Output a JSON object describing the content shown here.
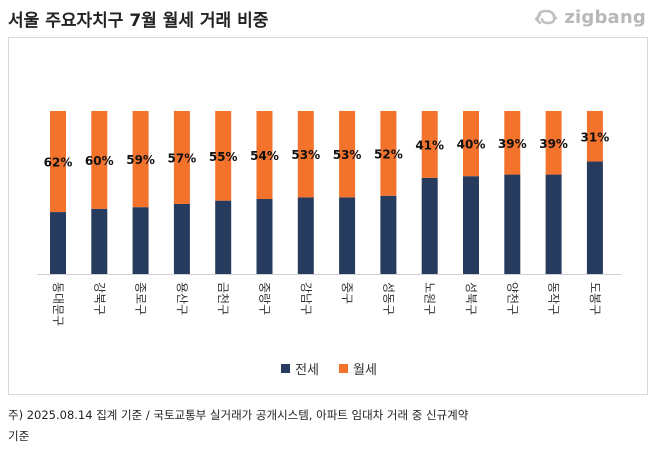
{
  "header": {
    "title": "서울 주요자치구 7월 월세 거래 비중",
    "logo_text": "zigbang",
    "logo_icon": "zigbang-logo-icon"
  },
  "colors": {
    "jeonse": "#263b5e",
    "wolse": "#f3722c",
    "frame": "#d9d9d9"
  },
  "chart_data": {
    "type": "bar",
    "stacked": true,
    "percent_stacked": true,
    "title": "서울 주요자치구 7월 월세 거래 비중",
    "categories": [
      "동대문구",
      "강북구",
      "종로구",
      "용산구",
      "금천구",
      "중랑구",
      "강남구",
      "중구",
      "성동구",
      "노원구",
      "성북구",
      "양천구",
      "동작구",
      "도봉구"
    ],
    "series": [
      {
        "name": "전세",
        "values": [
          38,
          40,
          41,
          43,
          45,
          46,
          47,
          47,
          48,
          59,
          60,
          61,
          61,
          69
        ]
      },
      {
        "name": "월세",
        "values": [
          62,
          60,
          59,
          57,
          55,
          54,
          53,
          53,
          52,
          41,
          40,
          39,
          39,
          31
        ]
      }
    ],
    "data_labels": [
      "62%",
      "60%",
      "59%",
      "57%",
      "55%",
      "54%",
      "53%",
      "53%",
      "52%",
      "41%",
      "40%",
      "39%",
      "39%",
      "31%"
    ],
    "ylim": [
      0,
      100
    ],
    "xlabel": "",
    "ylabel": "",
    "legend": {
      "position": "bottom-center",
      "entries": [
        "전세",
        "월세"
      ]
    },
    "grid": false
  },
  "footnote": {
    "line1": "주) 2025.08.14 집계 기준 / 국토교통부 실거래가 공개시스템, 아파트 임대차 거래  중 신규계약",
    "line2": "기준"
  }
}
